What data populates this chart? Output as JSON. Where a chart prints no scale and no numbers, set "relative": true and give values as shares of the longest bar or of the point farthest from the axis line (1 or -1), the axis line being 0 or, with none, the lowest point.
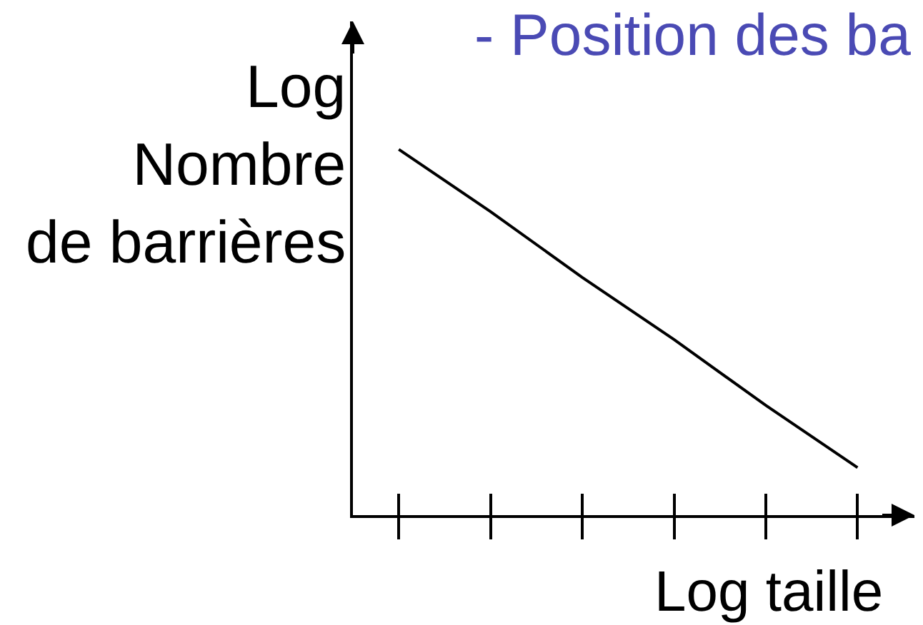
{
  "chart_data": {
    "type": "line",
    "title": "- Position des ba",
    "xlabel": "Log taille",
    "ylabel": "Log\nNombre\nde barrières",
    "relative": true,
    "line_style": "solid",
    "categories": [
      null,
      null,
      null,
      null,
      null,
      null
    ],
    "series": [
      {
        "color": "#000000",
        "values": [
          1,
          0.83,
          0.65,
          0.48,
          0.3,
          0.13
        ]
      }
    ]
  }
}
